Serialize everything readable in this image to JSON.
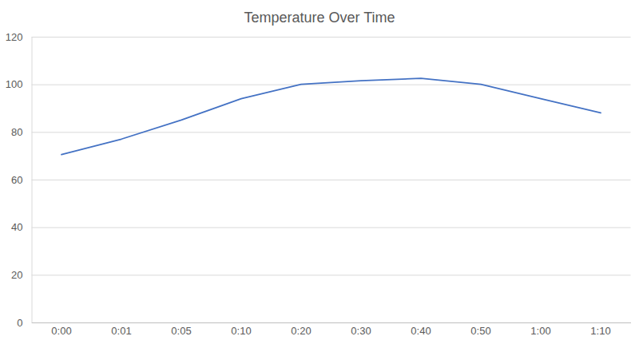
{
  "chart_data": {
    "type": "line",
    "title": "Temperature Over Time",
    "categories": [
      "0:00",
      "0:01",
      "0:05",
      "0:10",
      "0:20",
      "0:30",
      "0:40",
      "0:50",
      "1:00",
      "1:10"
    ],
    "values": [
      70.5,
      77,
      85,
      94,
      100,
      101.5,
      102.5,
      100,
      94,
      88
    ],
    "color": "#4472c4",
    "ylim": [
      0,
      120
    ],
    "yticks": [
      0,
      20,
      40,
      60,
      80,
      100,
      120
    ],
    "grid": true
  }
}
